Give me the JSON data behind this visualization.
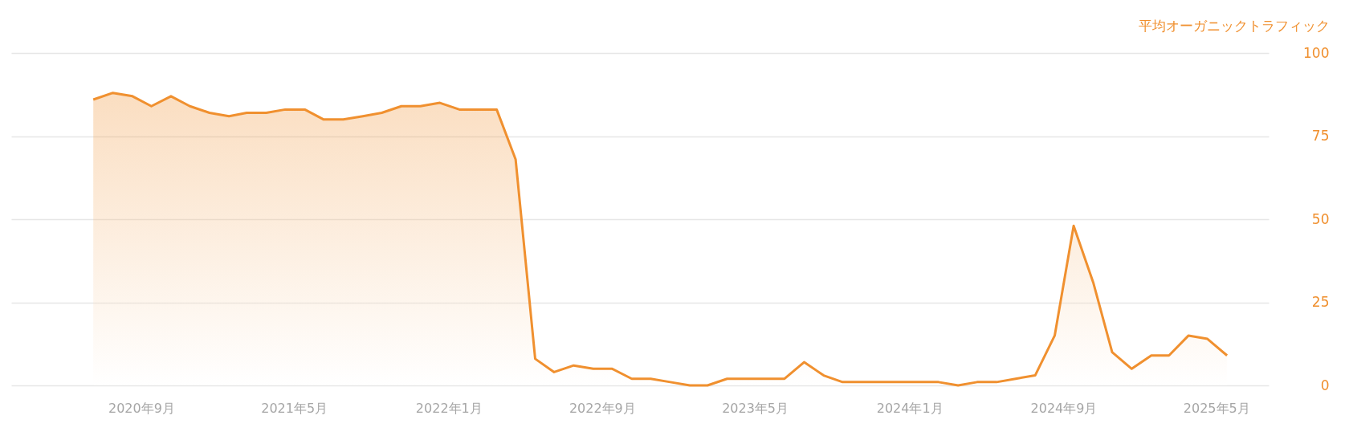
{
  "chart_data": {
    "type": "area",
    "ylabel": "平均オーガニックトラフィック",
    "x": [
      "2020-07",
      "2020-08",
      "2020-09",
      "2020-10",
      "2020-11",
      "2020-12",
      "2021-01",
      "2021-02",
      "2021-03",
      "2021-04",
      "2021-05",
      "2021-06",
      "2021-07",
      "2021-08",
      "2021-09",
      "2021-10",
      "2021-11",
      "2021-12",
      "2022-01",
      "2022-02",
      "2022-03",
      "2022-04",
      "2022-05",
      "2022-06",
      "2022-07",
      "2022-08",
      "2022-09",
      "2022-10",
      "2022-11",
      "2022-12",
      "2023-01",
      "2023-02",
      "2023-03",
      "2023-04",
      "2023-05",
      "2023-06",
      "2023-07",
      "2023-08",
      "2023-09",
      "2023-10",
      "2023-11",
      "2023-12",
      "2024-01",
      "2024-02",
      "2024-03",
      "2024-04",
      "2024-05",
      "2024-06",
      "2024-07",
      "2024-08",
      "2024-09",
      "2024-10",
      "2024-11",
      "2024-12",
      "2025-01",
      "2025-02",
      "2025-03",
      "2025-04",
      "2025-05",
      "2025-06"
    ],
    "series": [
      {
        "color": "#f0902f",
        "values": [
          86,
          88,
          87,
          84,
          87,
          84,
          82,
          81,
          82,
          82,
          83,
          83,
          80,
          80,
          81,
          82,
          84,
          84,
          85,
          83,
          83,
          83,
          68,
          8,
          4,
          6,
          5,
          5,
          2,
          2,
          1,
          0,
          0,
          2,
          2,
          2,
          2,
          7,
          3,
          1,
          1,
          1,
          1,
          1,
          1,
          0,
          1,
          1,
          2,
          3,
          15,
          48,
          31,
          10,
          5,
          9,
          9,
          15,
          14,
          9
        ]
      }
    ],
    "xlim": [
      "2020-02-22",
      "2025-08-06"
    ],
    "xticks": [
      {
        "value": "2020-09-15",
        "label": "2020年9月"
      },
      {
        "value": "2021-05-15",
        "label": "2021年5月"
      },
      {
        "value": "2022-01-15",
        "label": "2022年1月"
      },
      {
        "value": "2022-09-15",
        "label": "2022年9月"
      },
      {
        "value": "2023-05-15",
        "label": "2023年5月"
      },
      {
        "value": "2024-01-15",
        "label": "2024年1月"
      },
      {
        "value": "2024-09-15",
        "label": "2024年9月"
      },
      {
        "value": "2025-05-15",
        "label": "2025年5月"
      }
    ],
    "ylim": [
      0,
      100
    ],
    "yticks": [
      0,
      25,
      50,
      75,
      100
    ],
    "grid": "y",
    "line_style": "solid"
  }
}
